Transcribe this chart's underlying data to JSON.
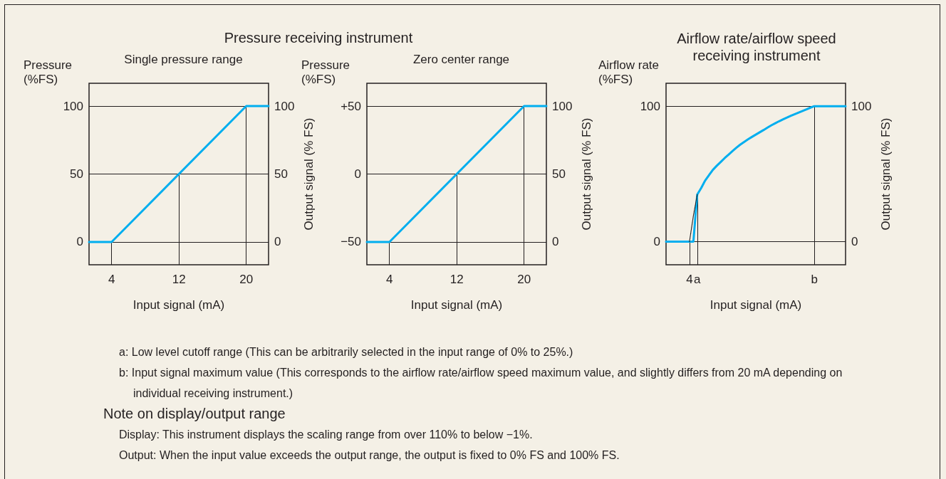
{
  "chart_data": [
    {
      "type": "line",
      "title": "Pressure receiving instrument",
      "subtitle": "Single pressure range",
      "ylabel": "Pressure (%FS)",
      "y2label": "Output signal (% FS)",
      "xlabel": "Input signal (mA)",
      "x": [
        1.32,
        4,
        20,
        22.65
      ],
      "series": [
        {
          "color": "#00aeef",
          "values": [
            0,
            0,
            100,
            100
          ]
        }
      ],
      "xlim": [
        1.32,
        22.65
      ],
      "xticks": [
        4,
        12,
        20
      ],
      "ylim": [
        -16.8,
        116.8
      ],
      "yticks": [
        0,
        50,
        100
      ],
      "y2lim": [
        -16.8,
        116.8
      ],
      "y2ticks": [
        0,
        50,
        100
      ],
      "grid": "y",
      "marker": "none",
      "line_style": "solid",
      "ref_lines": [
        {
          "axis": "x",
          "value": 4,
          "color": "#231f20"
        },
        {
          "axis": "x",
          "value": 12,
          "color": "#231f20"
        },
        {
          "axis": "x",
          "value": 20,
          "color": "#231f20"
        }
      ],
      "annotations": [
        "a: Low level cutoff range (This can be arbitrarily selected in the input range of 0% to 25%.)",
        "b: Input signal maximum value (This corresponds to the airflow rate/airflow speed maximum value, and slightly differs from 20 mA depending on individual receiving instrument.)",
        "Note on display/output range",
        "Display: This instrument displays the scaling range from over 110% to below −1%.",
        "Output: When the input value exceeds the output range, the output is fixed to 0% FS and 100% FS."
      ]
    },
    {
      "type": "line",
      "subtitle": "Zero center range",
      "ylabel": "Pressure (%FS)",
      "y2label": "Output signal (% FS)",
      "xlabel": "Input signal (mA)",
      "x": [
        1.32,
        4,
        20,
        22.65
      ],
      "series": [
        {
          "color": "#00aeef",
          "values": [
            -50,
            -50,
            50,
            50
          ]
        }
      ],
      "xlim": [
        1.32,
        22.65
      ],
      "xticks": [
        4,
        12,
        20
      ],
      "ylim": [
        -66.8,
        66.8
      ],
      "yticks": [
        {
          "value": -50,
          "label": "−50"
        },
        0,
        {
          "value": 50,
          "label": "+50"
        }
      ],
      "y2lim": [
        -16.8,
        116.8
      ],
      "y2ticks": [
        0,
        50,
        100
      ],
      "grid": "y",
      "marker": "none",
      "line_style": "solid",
      "ref_lines": [
        {
          "axis": "x",
          "value": 4,
          "color": "#231f20"
        },
        {
          "axis": "x",
          "value": 12,
          "color": "#231f20"
        },
        {
          "axis": "x",
          "value": 20,
          "color": "#231f20"
        }
      ]
    },
    {
      "type": "line",
      "title": "Airflow rate/airflow speed receiving instrument",
      "ylabel": "Airflow rate (%FS)",
      "y2label": "Output signal (% FS)",
      "xlabel": "Input signal (mA)",
      "categories": [
        null,
        null,
        null,
        null,
        null,
        null,
        "4",
        null,
        "a",
        null,
        null,
        null,
        null,
        null,
        null,
        null,
        null,
        null,
        null,
        null,
        null,
        null,
        null,
        null,
        null,
        null,
        null,
        null,
        null,
        null,
        null,
        null,
        null,
        null,
        null,
        null,
        null,
        null,
        "b",
        null,
        null,
        null,
        null,
        null,
        null,
        null,
        null
      ],
      "series": [
        {
          "color": "#00aeef",
          "values": [
            0,
            0,
            0,
            0,
            0,
            0,
            0,
            0,
            34.8,
            39.5,
            45,
            49,
            53,
            56,
            58.8,
            61.6,
            64.2,
            66.8,
            69.3,
            71.6,
            73.6,
            75.5,
            77.3,
            79,
            80.7,
            82.4,
            84.2,
            85.9,
            87.4,
            88.9,
            90.3,
            91.6,
            92.9,
            94.1,
            95.3,
            96.5,
            97.7,
            98.9,
            100,
            100,
            100,
            100,
            100,
            100,
            100,
            100,
            100
          ]
        },
        {
          "color": "#231f20",
          "line_style": "dotted",
          "values": [
            null,
            null,
            null,
            null,
            null,
            null,
            0,
            19,
            34.8,
            null,
            null,
            null,
            null,
            null,
            null,
            null,
            null,
            null,
            null,
            null,
            null,
            null,
            null,
            null,
            null,
            null,
            null,
            null,
            null,
            null,
            null,
            null,
            null,
            null,
            null,
            null,
            null,
            null,
            null,
            null,
            null,
            null,
            null,
            null,
            null,
            null,
            null
          ]
        }
      ],
      "ylim": [
        -17.1,
        116.9
      ],
      "yticks": [
        0,
        100
      ],
      "y2lim": [
        -17.1,
        116.9
      ],
      "y2ticks": [
        0,
        100
      ],
      "grid": "y",
      "marker": "none",
      "line_style": "solid",
      "ref_lines": [
        {
          "axis": "x",
          "value": "4",
          "color": "#231f20"
        },
        {
          "axis": "x",
          "value": "a",
          "color": "#231f20"
        },
        {
          "axis": "x",
          "value": "b",
          "color": "#231f20"
        }
      ]
    }
  ]
}
